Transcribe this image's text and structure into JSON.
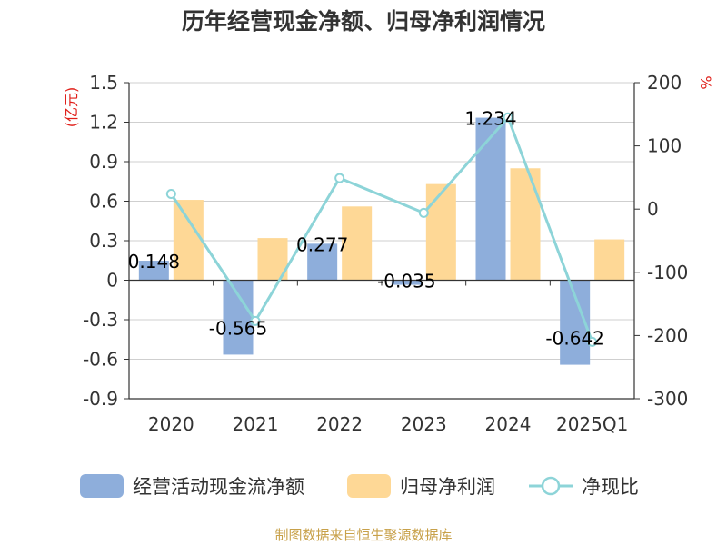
{
  "chart_data": {
    "type": "bar",
    "title": "历年经营现金净额、归母净利润情况",
    "categories": [
      "2020",
      "2021",
      "2022",
      "2023",
      "2024",
      "2025Q1"
    ],
    "left_axis": {
      "unit": "(亿元)",
      "ticks": [
        "1.5",
        "1.2",
        "0.9",
        "0.6",
        "0.3",
        "0",
        "-0.3",
        "-0.6",
        "-0.9"
      ],
      "ylim": [
        -0.9,
        1.5
      ]
    },
    "right_axis": {
      "unit": "%",
      "ticks": [
        "200",
        "100",
        "0",
        "-100",
        "-200",
        "-300"
      ],
      "ylim": [
        -300,
        200
      ]
    },
    "series": [
      {
        "name": "经营活动现金流净额",
        "kind": "bar",
        "axis": "left",
        "color": "#8eaedb",
        "values": [
          0.148,
          -0.565,
          0.277,
          -0.035,
          1.234,
          -0.642
        ],
        "labels": [
          "0.148",
          "-0.565",
          "0.277",
          "-0.035",
          "1.234",
          "-0.642"
        ]
      },
      {
        "name": "归母净利润",
        "kind": "bar",
        "axis": "left",
        "color": "#fed896",
        "values": [
          0.61,
          0.32,
          0.56,
          0.73,
          0.85,
          0.31
        ]
      },
      {
        "name": "净现比",
        "kind": "line",
        "axis": "right",
        "color": "#8dd4d8",
        "values": [
          24,
          -177,
          49,
          -6,
          145,
          -210
        ]
      }
    ],
    "legend": "bottom"
  },
  "source": "制图数据来自恒生聚源数据库"
}
